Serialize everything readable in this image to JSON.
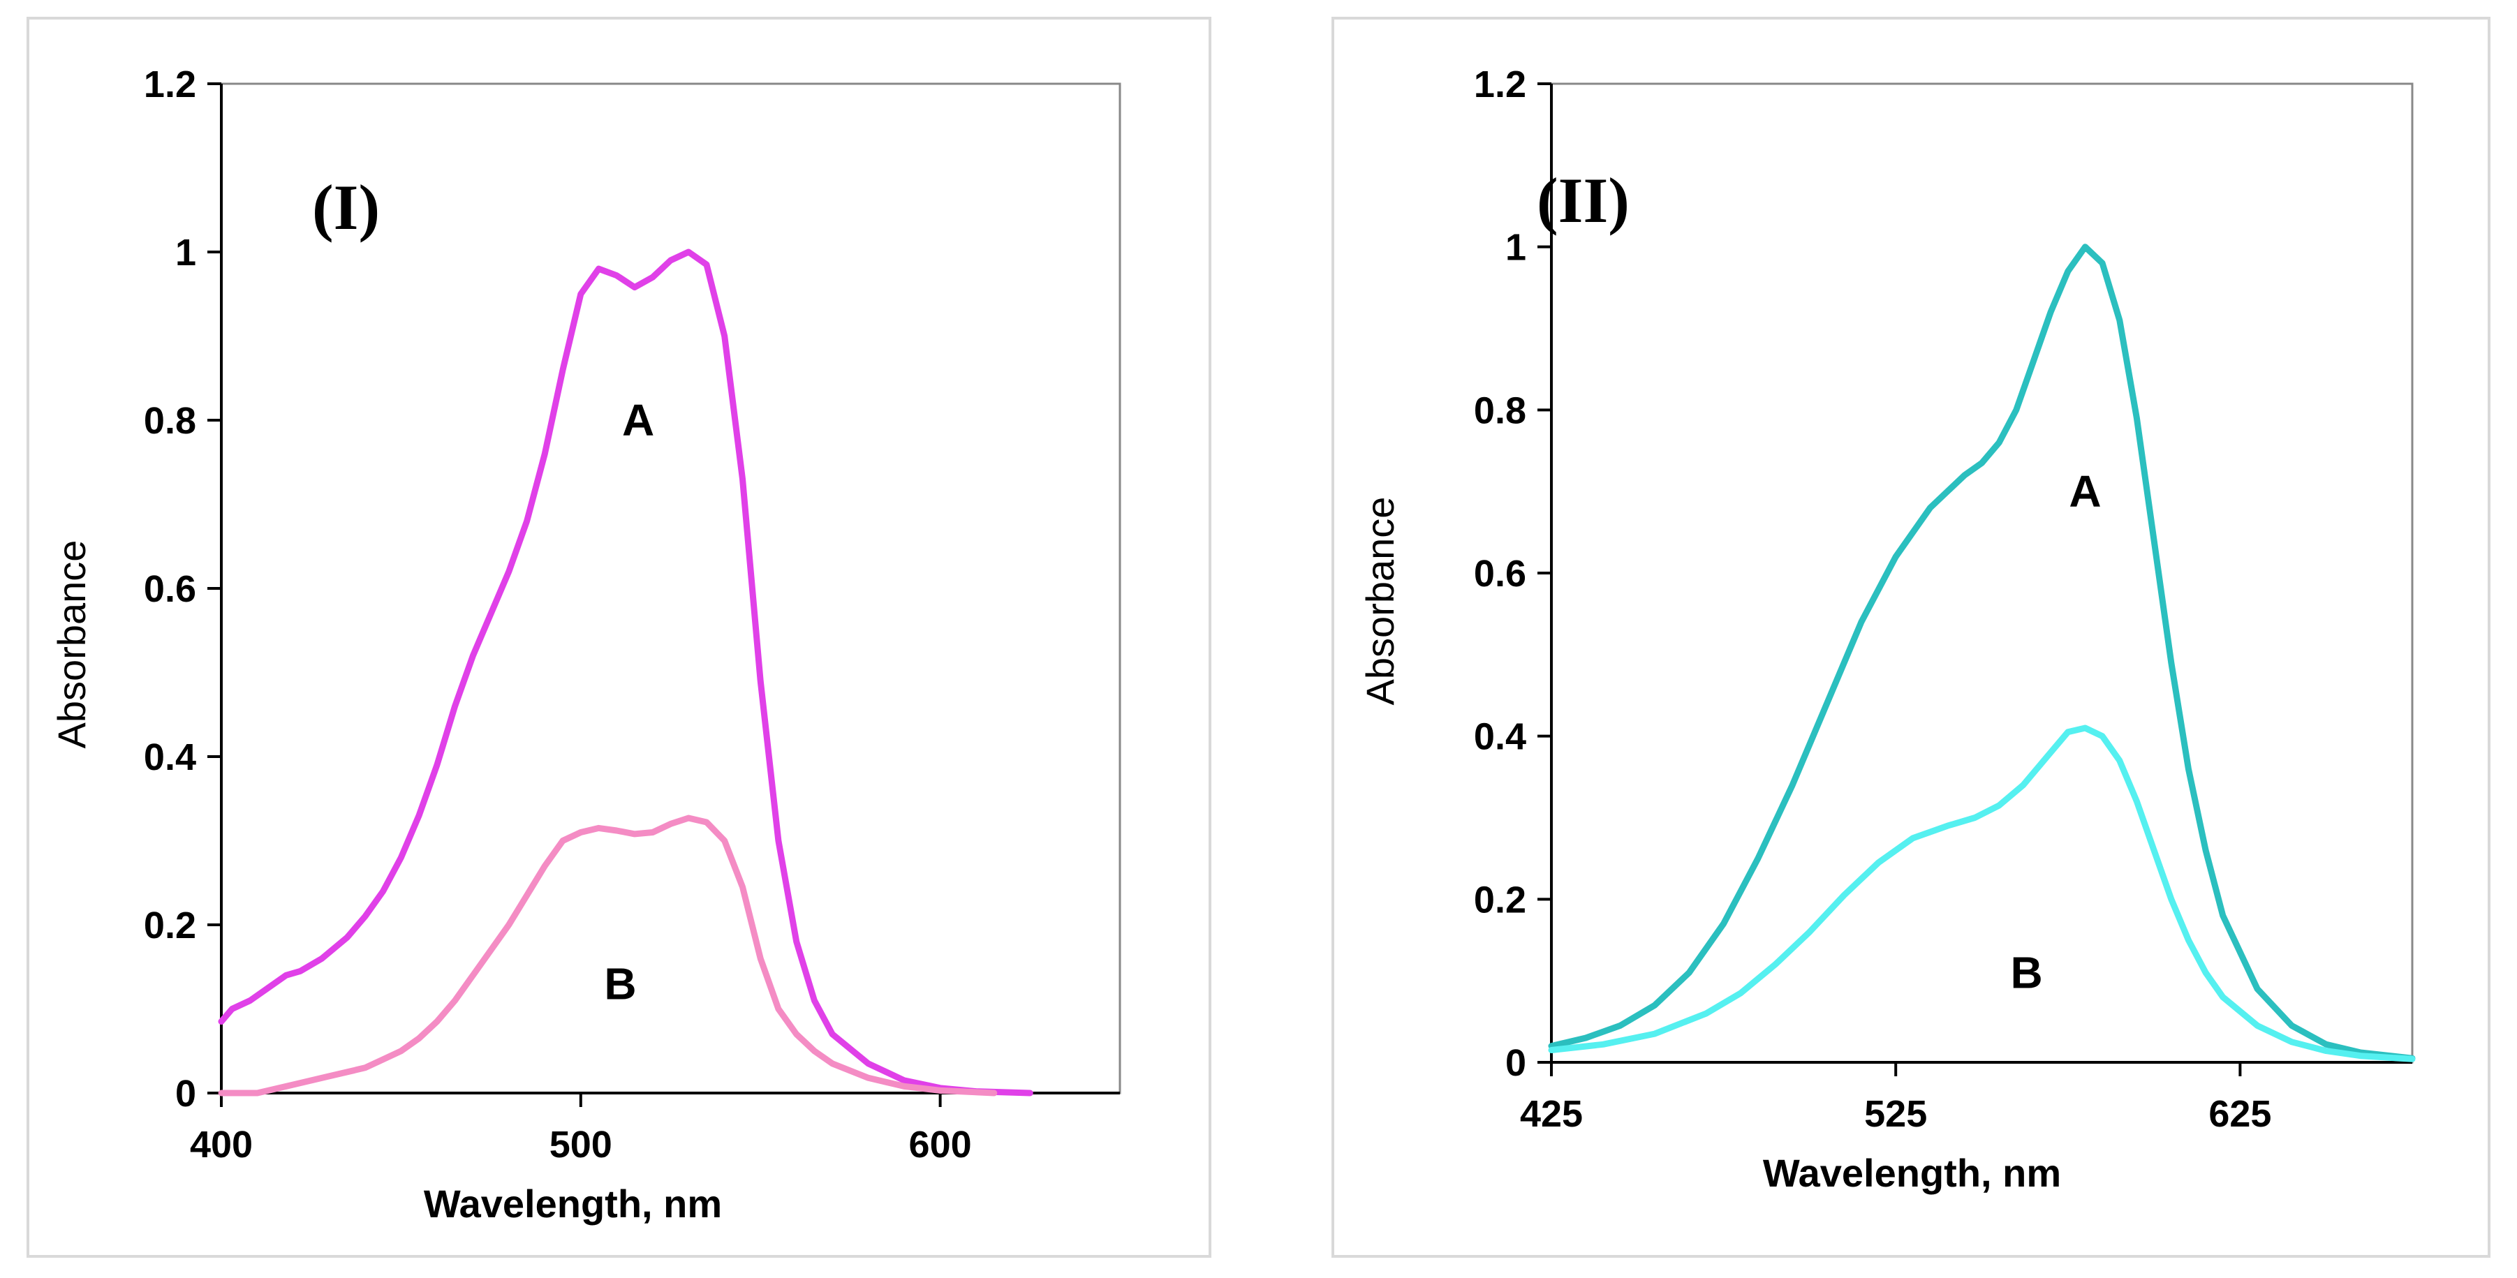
{
  "chart_data": [
    {
      "type": "line",
      "panel_label": "(I)",
      "xlabel": "Wavelength, nm",
      "ylabel": "Absorbance",
      "xlim": [
        400,
        650
      ],
      "ylim": [
        0,
        1.2
      ],
      "xticks": [
        400,
        500,
        600
      ],
      "yticks": [
        0,
        0.2,
        0.4,
        0.6,
        0.8,
        1,
        1.2
      ],
      "ytick_labels": [
        "0",
        "0.2",
        "0.4",
        "0.6",
        "0.8",
        "1",
        "1.2"
      ],
      "grid": false,
      "series": [
        {
          "name": "A",
          "color": "#e040e8",
          "label_at": [
            516,
            0.8
          ],
          "points": [
            [
              400,
              0.085
            ],
            [
              403,
              0.1
            ],
            [
              408,
              0.11
            ],
            [
              413,
              0.125
            ],
            [
              418,
              0.14
            ],
            [
              422,
              0.145
            ],
            [
              428,
              0.16
            ],
            [
              435,
              0.185
            ],
            [
              440,
              0.21
            ],
            [
              445,
              0.24
            ],
            [
              450,
              0.28
            ],
            [
              455,
              0.33
            ],
            [
              460,
              0.39
            ],
            [
              465,
              0.46
            ],
            [
              470,
              0.52
            ],
            [
              475,
              0.57
            ],
            [
              480,
              0.62
            ],
            [
              485,
              0.68
            ],
            [
              490,
              0.76
            ],
            [
              495,
              0.86
            ],
            [
              500,
              0.95
            ],
            [
              505,
              0.98
            ],
            [
              510,
              0.972
            ],
            [
              515,
              0.958
            ],
            [
              520,
              0.97
            ],
            [
              525,
              0.99
            ],
            [
              530,
              1.0
            ],
            [
              535,
              0.985
            ],
            [
              540,
              0.9
            ],
            [
              545,
              0.73
            ],
            [
              550,
              0.49
            ],
            [
              555,
              0.3
            ],
            [
              560,
              0.18
            ],
            [
              565,
              0.11
            ],
            [
              570,
              0.07
            ],
            [
              580,
              0.035
            ],
            [
              590,
              0.015
            ],
            [
              600,
              0.006
            ],
            [
              610,
              0.002
            ],
            [
              625,
              0.0
            ]
          ]
        },
        {
          "name": "B",
          "color": "#f48cc4",
          "label_at": [
            511,
            0.13
          ],
          "points": [
            [
              400,
              0.0
            ],
            [
              410,
              0.0
            ],
            [
              420,
              0.01
            ],
            [
              430,
              0.02
            ],
            [
              440,
              0.03
            ],
            [
              445,
              0.04
            ],
            [
              450,
              0.05
            ],
            [
              455,
              0.065
            ],
            [
              460,
              0.085
            ],
            [
              465,
              0.11
            ],
            [
              470,
              0.14
            ],
            [
              475,
              0.17
            ],
            [
              480,
              0.2
            ],
            [
              485,
              0.235
            ],
            [
              490,
              0.27
            ],
            [
              495,
              0.3
            ],
            [
              500,
              0.31
            ],
            [
              505,
              0.315
            ],
            [
              510,
              0.312
            ],
            [
              515,
              0.308
            ],
            [
              520,
              0.31
            ],
            [
              525,
              0.32
            ],
            [
              530,
              0.327
            ],
            [
              535,
              0.322
            ],
            [
              540,
              0.3
            ],
            [
              545,
              0.245
            ],
            [
              550,
              0.16
            ],
            [
              555,
              0.1
            ],
            [
              560,
              0.07
            ],
            [
              565,
              0.05
            ],
            [
              570,
              0.035
            ],
            [
              580,
              0.018
            ],
            [
              590,
              0.008
            ],
            [
              600,
              0.003
            ],
            [
              615,
              0.0
            ]
          ]
        }
      ]
    },
    {
      "type": "line",
      "panel_label": "(II)",
      "xlabel": "Wavelength, nm",
      "ylabel": "Absorbance",
      "xlim": [
        425,
        675
      ],
      "ylim": [
        0,
        1.2
      ],
      "xticks": [
        425,
        525,
        625
      ],
      "yticks": [
        0,
        0.2,
        0.4,
        0.6,
        0.8,
        1,
        1.2
      ],
      "ytick_labels": [
        "0",
        "0.2",
        "0.4",
        "0.6",
        "0.8",
        "1",
        "1.2"
      ],
      "grid": false,
      "series": [
        {
          "name": "A",
          "color": "#2bbfbf",
          "label_at": [
            580,
            0.7
          ],
          "points": [
            [
              425,
              0.02
            ],
            [
              435,
              0.03
            ],
            [
              445,
              0.045
            ],
            [
              455,
              0.07
            ],
            [
              465,
              0.11
            ],
            [
              475,
              0.17
            ],
            [
              485,
              0.25
            ],
            [
              495,
              0.34
            ],
            [
              505,
              0.44
            ],
            [
              515,
              0.54
            ],
            [
              525,
              0.62
            ],
            [
              535,
              0.68
            ],
            [
              545,
              0.72
            ],
            [
              550,
              0.735
            ],
            [
              555,
              0.76
            ],
            [
              560,
              0.8
            ],
            [
              565,
              0.86
            ],
            [
              570,
              0.92
            ],
            [
              575,
              0.97
            ],
            [
              580,
              1.0
            ],
            [
              585,
              0.98
            ],
            [
              590,
              0.91
            ],
            [
              595,
              0.79
            ],
            [
              600,
              0.64
            ],
            [
              605,
              0.49
            ],
            [
              610,
              0.36
            ],
            [
              615,
              0.26
            ],
            [
              620,
              0.18
            ],
            [
              630,
              0.09
            ],
            [
              640,
              0.045
            ],
            [
              650,
              0.022
            ],
            [
              660,
              0.012
            ],
            [
              675,
              0.005
            ]
          ]
        },
        {
          "name": "B",
          "color": "#55f0f0",
          "label_at": [
            563,
            0.11
          ],
          "points": [
            [
              425,
              0.015
            ],
            [
              440,
              0.022
            ],
            [
              455,
              0.035
            ],
            [
              470,
              0.06
            ],
            [
              480,
              0.085
            ],
            [
              490,
              0.12
            ],
            [
              500,
              0.16
            ],
            [
              510,
              0.205
            ],
            [
              520,
              0.245
            ],
            [
              530,
              0.275
            ],
            [
              540,
              0.29
            ],
            [
              548,
              0.3
            ],
            [
              555,
              0.315
            ],
            [
              562,
              0.34
            ],
            [
              570,
              0.38
            ],
            [
              575,
              0.405
            ],
            [
              580,
              0.41
            ],
            [
              585,
              0.4
            ],
            [
              590,
              0.37
            ],
            [
              595,
              0.32
            ],
            [
              600,
              0.26
            ],
            [
              605,
              0.2
            ],
            [
              610,
              0.15
            ],
            [
              615,
              0.11
            ],
            [
              620,
              0.08
            ],
            [
              630,
              0.045
            ],
            [
              640,
              0.025
            ],
            [
              650,
              0.014
            ],
            [
              660,
              0.008
            ],
            [
              675,
              0.004
            ]
          ]
        }
      ]
    }
  ]
}
